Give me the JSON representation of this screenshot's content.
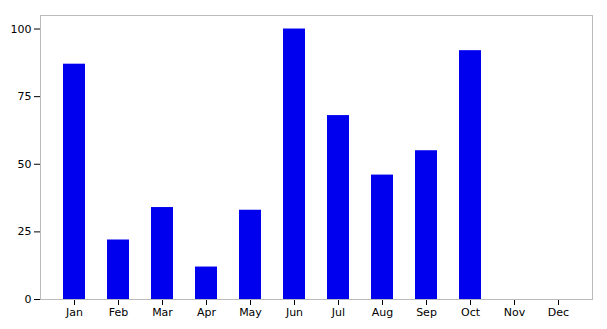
{
  "chart_data": {
    "type": "bar",
    "categories": [
      "Jan",
      "Feb",
      "Mar",
      "Apr",
      "May",
      "Jun",
      "Jul",
      "Aug",
      "Sep",
      "Oct",
      "Nov",
      "Dec"
    ],
    "values": [
      87,
      22,
      34,
      12,
      33,
      100,
      68,
      46,
      55,
      92,
      0,
      0
    ],
    "color": "#0000EE",
    "ylim": [
      0,
      105
    ],
    "yticks": [
      0,
      25,
      50,
      75,
      100
    ],
    "grid": false
  }
}
